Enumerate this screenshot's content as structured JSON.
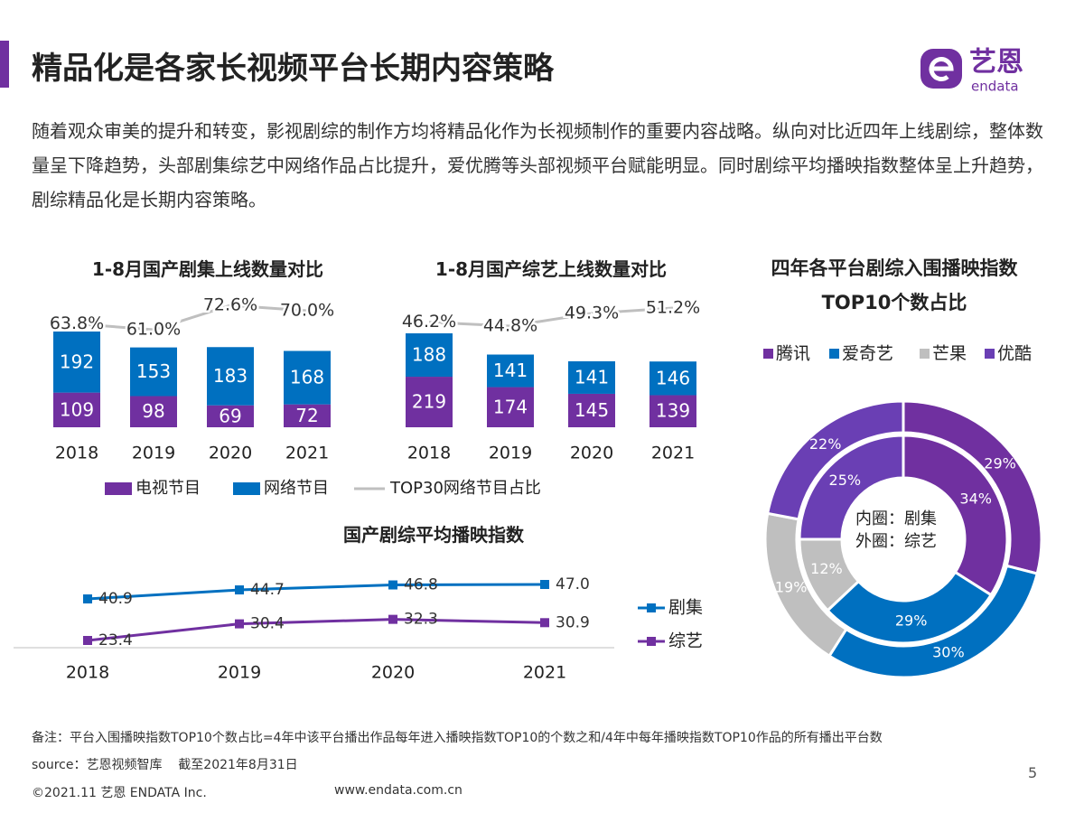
{
  "header": {
    "title": "精品化是各家长视频平台长期内容策略",
    "logo": "艺恩",
    "logo_sub": "endata"
  },
  "paragraph": "随着观众审美的提升和转变，影视剧综的制作方均将精品化作为长视频制作的重要内容战略。纵向对比近四年上线剧综，整体数量呈下降趋势，头部剧集综艺中网络作品占比提升，爱优腾等头部视频平台赋能明显。同时剧综平均播映指数整体呈上升趋势，剧综精品化是长期内容策略。",
  "chart_data": [
    {
      "type": "bar",
      "title": "1-8月国产剧集上线数量对比",
      "categories": [
        "2018",
        "2019",
        "2020",
        "2021"
      ],
      "series": [
        {
          "name": "电视节目",
          "color": "#7030a0",
          "values": [
            109,
            98,
            69,
            72
          ]
        },
        {
          "name": "网络节目",
          "color": "#0070c0",
          "values": [
            192,
            153,
            183,
            168
          ]
        },
        {
          "name": "TOP30网络节目占比",
          "color": "#bfbfbf",
          "axis": "y2",
          "values": [
            63.8,
            61.0,
            72.6,
            70.0
          ],
          "value_labels": [
            "63.8%",
            "61.0%",
            "72.6%",
            "70.0%"
          ]
        }
      ]
    },
    {
      "type": "bar",
      "title": "1-8月国产综艺上线数量对比",
      "categories": [
        "2018",
        "2019",
        "2020",
        "2021"
      ],
      "series": [
        {
          "color": "#7030a0",
          "values": [
            219,
            174,
            145,
            139
          ]
        },
        {
          "color": "#0070c0",
          "values": [
            188,
            141,
            141,
            146
          ]
        },
        {
          "color": "#bfbfbf",
          "axis": "y2",
          "values": [
            46.2,
            44.8,
            49.3,
            51.2
          ],
          "value_labels": [
            "46.2%",
            "44.8%",
            "49.3%",
            "51.2%"
          ]
        }
      ]
    },
    {
      "type": "line",
      "title": "国产剧综平均播映指数",
      "categories": [
        "2018",
        "2019",
        "2020",
        "2021"
      ],
      "series": [
        {
          "name": "剧集",
          "color": "#0070c0",
          "values": [
            40.9,
            44.7,
            46.8,
            47.0
          ],
          "value_labels": [
            "40.9",
            "44.7",
            "46.8",
            "47.0"
          ]
        },
        {
          "name": "综艺",
          "color": "#7030a0",
          "values": [
            23.4,
            30.4,
            32.3,
            30.9
          ]
        }
      ]
    },
    {
      "type": "pie",
      "title": "四年各平台剧综入围播映指数TOP10个数占比",
      "categories": [
        "腾讯",
        "爱奇艺",
        "芒果",
        "优酷"
      ],
      "colors": [
        "#7030a0",
        "#0070c0",
        "#bfbfbf",
        "#6a3fb4"
      ],
      "annotations": [
        "内圈：剧集",
        "外圈：综艺"
      ],
      "series": [
        {
          "values": [
            34,
            29,
            12,
            25
          ],
          "value_labels": [
            "34%",
            "29%",
            "12%",
            "25%"
          ]
        },
        {
          "values": [
            29,
            30,
            19,
            22
          ],
          "value_labels": [
            "29%",
            "30%",
            "19%",
            "22%"
          ]
        }
      ]
    }
  ],
  "footer": {
    "note": "备注：平台入围播映指数TOP10个数占比=4年中该平台播出作品每年进入播映指数TOP10的个数之和/4年中每年播映指数TOP10作品的所有播出平台数",
    "source": "source：艺恩视频智库    截至2021年8月31日",
    "copyright": "©2021.11 艺恩 ENDATA Inc.",
    "website": "www.endata.com.cn",
    "page": "5"
  }
}
